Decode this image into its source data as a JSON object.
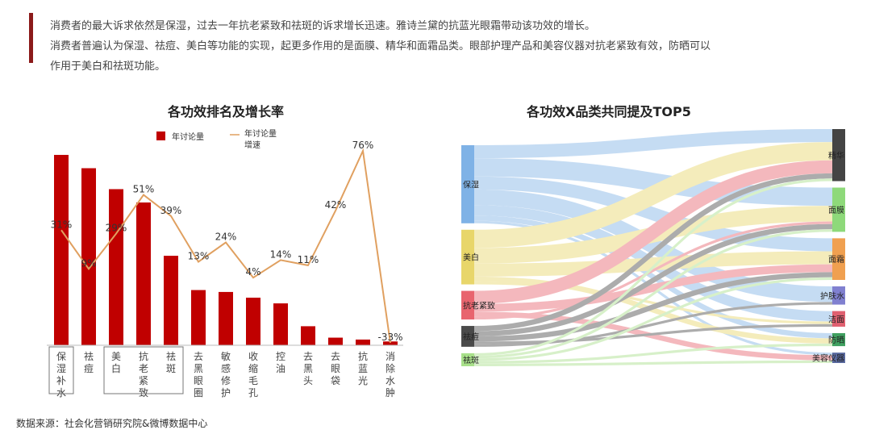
{
  "intro": {
    "line1": "消费者的最大诉求依然是保湿，过去一年抗老紧致和祛斑的诉求增长迅速。雅诗兰黛的抗蓝光眼霜带动该功效的增长。",
    "line2": "消费者普遍认为保湿、祛痘、美白等功能的实现，起更多作用的是面膜、精华和面霜品类。眼部护理产品和美容仪器对抗老紧致有效，防晒可以",
    "line3": "作用于美白和祛斑功能。"
  },
  "source": "数据来源：社会化营销研究院&微博数据中心",
  "colors": {
    "bar": "#c00000",
    "line": "#e0a060",
    "accent": "#8b1a1a"
  },
  "chart_data": [
    {
      "type": "bar",
      "title": "各功效排名及增长率",
      "legend": [
        "年讨论量",
        "年讨论量增速"
      ],
      "legend_position": "top",
      "categories": [
        "保湿补水",
        "祛痘",
        "美白",
        "抗老紧致",
        "祛斑",
        "去黑眼圈",
        "敏感修护",
        "收缩毛孔",
        "控油",
        "去黑头",
        "去眼袋",
        "抗蓝光",
        "消除水肿"
      ],
      "series": [
        {
          "name": "年讨论量",
          "type": "bar",
          "values": [
            100,
            93,
            82,
            75,
            47,
            29,
            28,
            25,
            22,
            10,
            4,
            3,
            2
          ]
        },
        {
          "name": "年讨论量增速",
          "type": "line",
          "unit": "%",
          "values": [
            31,
            9,
            29,
            51,
            39,
            13,
            24,
            4,
            14,
            11,
            42,
            76,
            -33
          ]
        }
      ],
      "data_labels": [
        "31%",
        "9%",
        "29%",
        "51%",
        "39%",
        "13%",
        "24%",
        "4%",
        "14%",
        "11%",
        "42%",
        "76%",
        "-33%"
      ],
      "boxed_groups": [
        [
          "保湿补水"
        ],
        [
          "美白",
          "抗老紧致",
          "祛斑"
        ]
      ]
    },
    {
      "type": "sankey",
      "title": "各功效X品类共同提及TOP5",
      "sources": [
        {
          "name": "保湿",
          "color": "#7fb2e6"
        },
        {
          "name": "美白",
          "color": "#e8d66a"
        },
        {
          "name": "抗老紧致",
          "color": "#e8646e"
        },
        {
          "name": "祛痘",
          "color": "#4a4a4a"
        },
        {
          "name": "祛斑",
          "color": "#a8e08a"
        }
      ],
      "targets": [
        {
          "name": "精华",
          "color": "#444444"
        },
        {
          "name": "面膜",
          "color": "#8ed97a"
        },
        {
          "name": "面霜",
          "color": "#f0a050"
        },
        {
          "name": "护肤水",
          "color": "#8080d0"
        },
        {
          "name": "洁面",
          "color": "#e06070"
        },
        {
          "name": "防晒",
          "color": "#40a060"
        },
        {
          "name": "美容仪器",
          "color": "#5a6aa0"
        }
      ],
      "links": [
        [
          "保湿",
          "精华",
          10
        ],
        [
          "保湿",
          "面膜",
          14
        ],
        [
          "保湿",
          "面霜",
          10
        ],
        [
          "保湿",
          "护肤水",
          12
        ],
        [
          "保湿",
          "洁面",
          8
        ],
        [
          "保湿",
          "防晒",
          4
        ],
        [
          "保湿",
          "美容仪器",
          2
        ],
        [
          "美白",
          "精华",
          14
        ],
        [
          "美白",
          "面膜",
          12
        ],
        [
          "美白",
          "面霜",
          10
        ],
        [
          "美白",
          "防晒",
          4
        ],
        [
          "美白",
          "洁面",
          2
        ],
        [
          "抗老紧致",
          "精华",
          10
        ],
        [
          "抗老紧致",
          "面霜",
          6
        ],
        [
          "抗老紧致",
          "美容仪器",
          4
        ],
        [
          "抗老紧致",
          "面膜",
          2
        ],
        [
          "祛痘",
          "精华",
          4
        ],
        [
          "祛痘",
          "面膜",
          4
        ],
        [
          "祛痘",
          "面霜",
          4
        ],
        [
          "祛痘",
          "洁面",
          2
        ],
        [
          "祛痘",
          "护肤水",
          2
        ],
        [
          "祛斑",
          "精华",
          2
        ],
        [
          "祛斑",
          "面膜",
          2
        ],
        [
          "祛斑",
          "面霜",
          2
        ],
        [
          "祛斑",
          "防晒",
          2
        ],
        [
          "祛斑",
          "美容仪器",
          2
        ]
      ]
    }
  ]
}
